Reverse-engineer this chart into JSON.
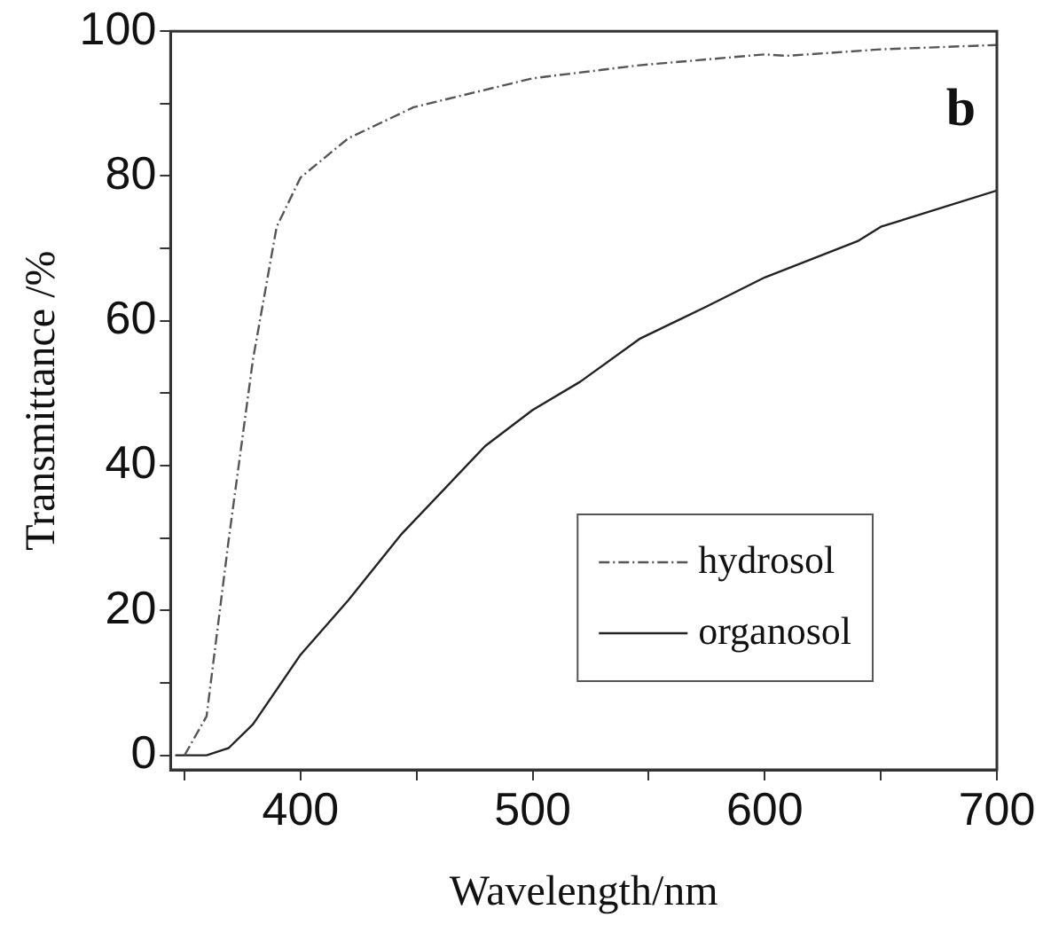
{
  "chart_data": {
    "type": "line",
    "xlabel": "Wavelength/nm",
    "ylabel": "Transmittance /%",
    "annotations": [
      "b"
    ],
    "xlim": [
      344,
      700
    ],
    "xticks": [
      {
        "value": 350,
        "label": null
      },
      400,
      {
        "value": 450,
        "label": null
      },
      500,
      {
        "value": 550,
        "label": null
      },
      600,
      {
        "value": 650,
        "label": null
      },
      700
    ],
    "ylim": [
      -2,
      100
    ],
    "yticks": [
      0,
      {
        "value": 10,
        "label": null
      },
      20,
      {
        "value": 30,
        "label": null
      },
      40,
      {
        "value": 50,
        "label": null
      },
      60,
      {
        "value": 70,
        "label": null
      },
      80,
      {
        "value": 90,
        "label": null
      },
      100
    ],
    "grid": false,
    "legend": "bottom right",
    "marker": "none",
    "series": [
      {
        "name": "hydrosol",
        "color": "#555555",
        "line_style": "dashed",
        "x": [
          350,
          359.5,
          369,
          379.5,
          389.7,
          400,
          420.5,
          448.7,
          500,
          546,
          600,
          609.5,
          650,
          700
        ],
        "values": [
          0,
          5.4,
          29.7,
          54.7,
          73,
          79.8,
          85.2,
          89.5,
          93.5,
          95.3,
          96.8,
          96.6,
          97.5,
          98.1
        ]
      },
      {
        "name": "organosol",
        "color": "#222222",
        "line_style": "solid",
        "x": [
          346,
          359.5,
          369,
          379.5,
          400,
          420.5,
          443.6,
          479.5,
          500,
          520.5,
          546,
          575,
          600,
          640,
          650,
          700
        ],
        "values": [
          0,
          0,
          1,
          4.3,
          13.9,
          21.4,
          30.6,
          42.7,
          47.7,
          51.6,
          57.5,
          62,
          66,
          71,
          73,
          78
        ]
      }
    ]
  }
}
